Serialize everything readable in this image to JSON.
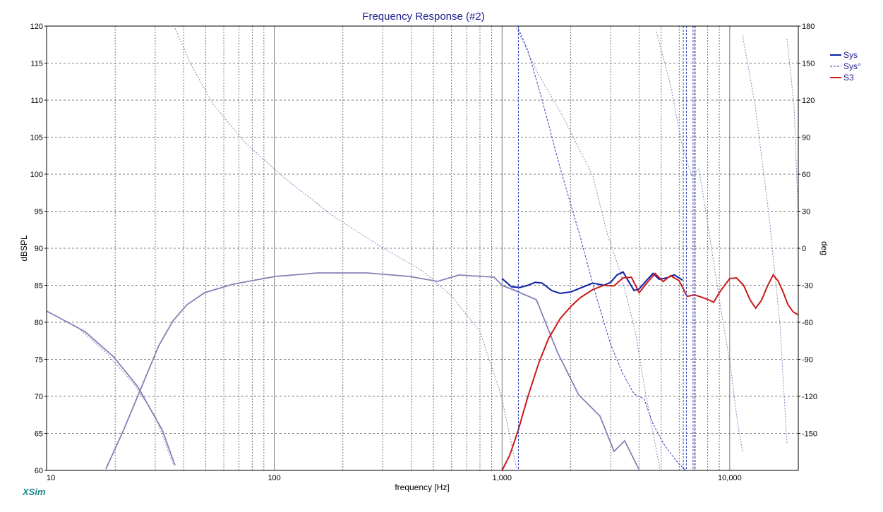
{
  "chart_data": {
    "type": "line",
    "title": "Frequency Response (#2)",
    "xlabel": "frequency [Hz]",
    "ylabel": "dBSPL",
    "y2label": "deg",
    "x_scale": "log",
    "xlim": [
      10,
      20000
    ],
    "ylim": [
      60,
      120
    ],
    "y2lim": [
      -180,
      180
    ],
    "x_tick_labels": [
      {
        "value": 10,
        "label": "10"
      },
      {
        "value": 100,
        "label": "100"
      },
      {
        "value": 1000,
        "label": "1,000"
      },
      {
        "value": 10000,
        "label": "10,000"
      }
    ],
    "y_ticks": [
      60,
      65,
      70,
      75,
      80,
      85,
      90,
      95,
      100,
      105,
      110,
      115,
      120
    ],
    "y2_ticks": [
      -150,
      -120,
      -90,
      -60,
      -30,
      0,
      30,
      60,
      90,
      120,
      150,
      180
    ],
    "grid": true,
    "legend_position": "right",
    "brand": "XSim",
    "series": [
      {
        "name": "Sys",
        "axis": "left",
        "color": "#0c1ea8",
        "style": "solid",
        "x": [
          1000,
          1100,
          1200,
          1300,
          1400,
          1500,
          1650,
          1800,
          2000,
          2200,
          2500,
          2800,
          3000,
          3200,
          3400,
          3600,
          3800,
          4000,
          4300,
          4600,
          4900,
          5300,
          5700,
          6200
        ],
        "y": [
          85.9,
          84.8,
          84.7,
          85.0,
          85.4,
          85.3,
          84.3,
          83.9,
          84.1,
          84.6,
          85.3,
          85.0,
          85.4,
          86.4,
          86.8,
          85.5,
          84.3,
          84.5,
          85.6,
          86.6,
          85.8,
          86.0,
          86.4,
          85.7
        ]
      },
      {
        "name": "Sys°",
        "axis": "right",
        "color": "#2c3cb8",
        "style": "dashed",
        "x": [
          1180,
          1300,
          1500,
          1800,
          2200,
          2600,
          3000,
          3400,
          3800,
          4200,
          4600,
          5100,
          5800,
          6400
        ],
        "y": [
          178,
          160,
          120,
          65,
          10,
          -40,
          -78,
          -102,
          -118,
          -122,
          -142,
          -158,
          -172,
          -180
        ]
      },
      {
        "name": "S3",
        "axis": "left",
        "color": "#cc1818",
        "style": "solid",
        "x": [
          1000,
          1080,
          1180,
          1300,
          1450,
          1600,
          1800,
          2000,
          2200,
          2500,
          2800,
          3100,
          3400,
          3700,
          4000,
          4300,
          4700,
          5100,
          5500,
          6000,
          6500,
          7000,
          7500,
          8000,
          8500,
          9000,
          9500,
          10000,
          10700,
          11500,
          12300,
          13000,
          13800,
          14600,
          15500,
          16300,
          17100,
          18000,
          19000,
          20000
        ],
        "y": [
          60,
          62,
          65.5,
          70,
          74.5,
          77.8,
          80.5,
          82.1,
          83.3,
          84.4,
          85.0,
          84.9,
          86.0,
          86.1,
          84.0,
          85.2,
          86.6,
          85.5,
          86.3,
          85.6,
          83.5,
          83.7,
          83.4,
          83.1,
          82.7,
          84.0,
          85.0,
          85.9,
          86.0,
          85.0,
          83.0,
          81.9,
          83.0,
          84.8,
          86.4,
          85.6,
          84.2,
          82.4,
          81.4,
          81.0
        ]
      }
    ]
  }
}
